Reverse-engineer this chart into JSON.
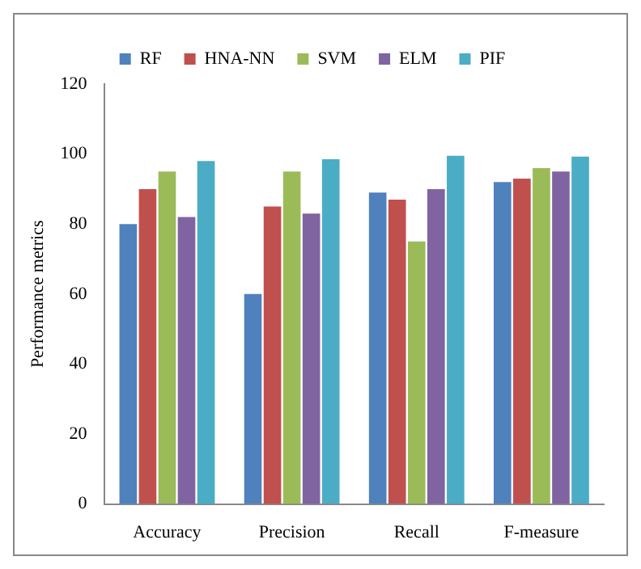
{
  "chart_data": {
    "type": "bar",
    "ylabel": "Performance metrics",
    "categories": [
      "Accuracy",
      "Precision",
      "Recall",
      "F-measure"
    ],
    "series": [
      {
        "name": "RF",
        "color": "#4f81bd",
        "values": [
          80,
          60,
          89,
          92
        ]
      },
      {
        "name": "HNA-NN",
        "color": "#c0504d",
        "values": [
          90,
          85,
          87,
          93
        ]
      },
      {
        "name": "SVM",
        "color": "#9bbb59",
        "values": [
          95,
          95,
          75,
          96
        ]
      },
      {
        "name": "ELM",
        "color": "#8064a2",
        "values": [
          82,
          83,
          90,
          95
        ]
      },
      {
        "name": "PIF",
        "color": "#4bacc6",
        "values": [
          98,
          98.5,
          99.5,
          99.3
        ]
      }
    ],
    "ylim": [
      0,
      120
    ],
    "yticks": [
      0,
      20,
      40,
      60,
      80,
      100,
      120
    ],
    "grid": false,
    "legend": "top"
  }
}
